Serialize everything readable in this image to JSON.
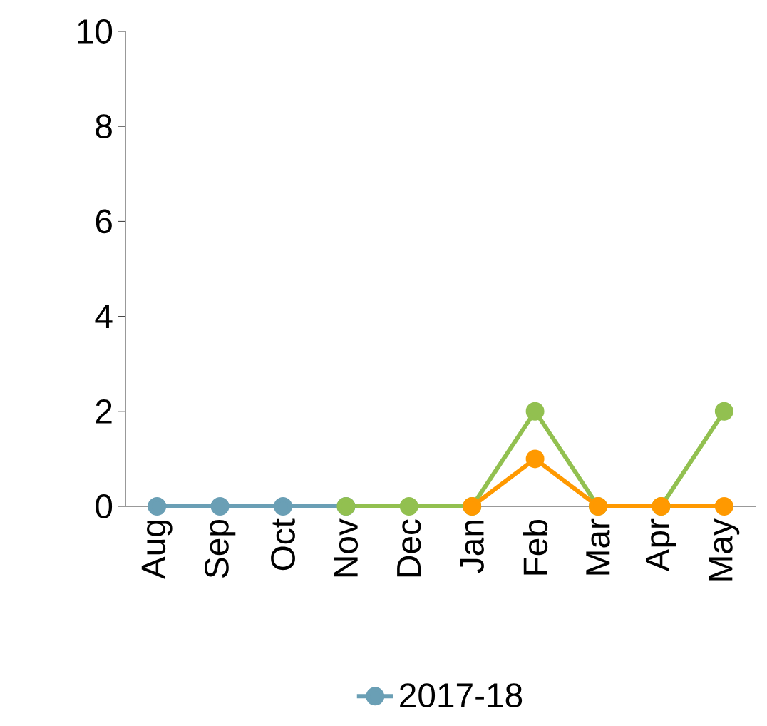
{
  "chart_data": {
    "type": "line",
    "categories": [
      "Aug",
      "Sep",
      "Oct",
      "Nov",
      "Dec",
      "Jan",
      "Feb",
      "Mar",
      "Apr",
      "May"
    ],
    "series": [
      {
        "name": "2017-18",
        "color": "#6a9fb5",
        "values": [
          0,
          0,
          0,
          0,
          null,
          null,
          null,
          null,
          null,
          null
        ]
      },
      {
        "color": "#92c050",
        "values": [
          null,
          null,
          null,
          0,
          0,
          0,
          2,
          0,
          0,
          2
        ]
      },
      {
        "color": "#ff9900",
        "values": [
          null,
          null,
          null,
          null,
          null,
          0,
          1,
          0,
          0,
          0
        ]
      }
    ],
    "ylim": [
      0,
      10
    ],
    "yticks": [
      0,
      2,
      4,
      6,
      8,
      10
    ],
    "grid": false,
    "legend": "bottom",
    "marker": "circle",
    "line_style": "solid"
  }
}
